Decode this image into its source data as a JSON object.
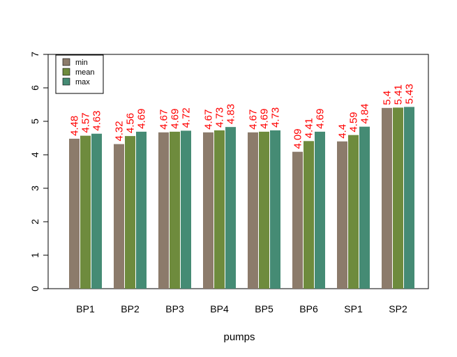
{
  "chart_data": {
    "type": "bar",
    "title": "",
    "xlabel": "pumps",
    "ylabel": "",
    "ylim": [
      0,
      7
    ],
    "yticks": [
      0,
      1,
      2,
      3,
      4,
      5,
      6,
      7
    ],
    "grid": false,
    "legend_position": "top-left",
    "categories": [
      "BP1",
      "BP2",
      "BP3",
      "BP4",
      "BP5",
      "BP6",
      "SP1",
      "SP2"
    ],
    "series": [
      {
        "name": "min",
        "color": "#8c7b6b",
        "values": [
          4.48,
          4.32,
          4.67,
          4.67,
          4.67,
          4.09,
          4.4,
          5.4
        ],
        "labels": [
          "4.48",
          "4.32",
          "4.67",
          "4.67",
          "4.67",
          "4.09",
          "4.4",
          "5.4"
        ]
      },
      {
        "name": "mean",
        "color": "#6e8b3d",
        "values": [
          4.57,
          4.56,
          4.69,
          4.73,
          4.69,
          4.41,
          4.59,
          5.41
        ],
        "labels": [
          "4.57",
          "4.56",
          "4.69",
          "4.73",
          "4.69",
          "4.41",
          "4.59",
          "5.41"
        ]
      },
      {
        "name": "max",
        "color": "#458b74",
        "values": [
          4.63,
          4.69,
          4.72,
          4.83,
          4.73,
          4.69,
          4.84,
          5.43
        ],
        "labels": [
          "4.63",
          "4.69",
          "4.72",
          "4.83",
          "4.73",
          "4.69",
          "4.84",
          "5.43"
        ]
      }
    ],
    "label_color": "#ff0000"
  }
}
